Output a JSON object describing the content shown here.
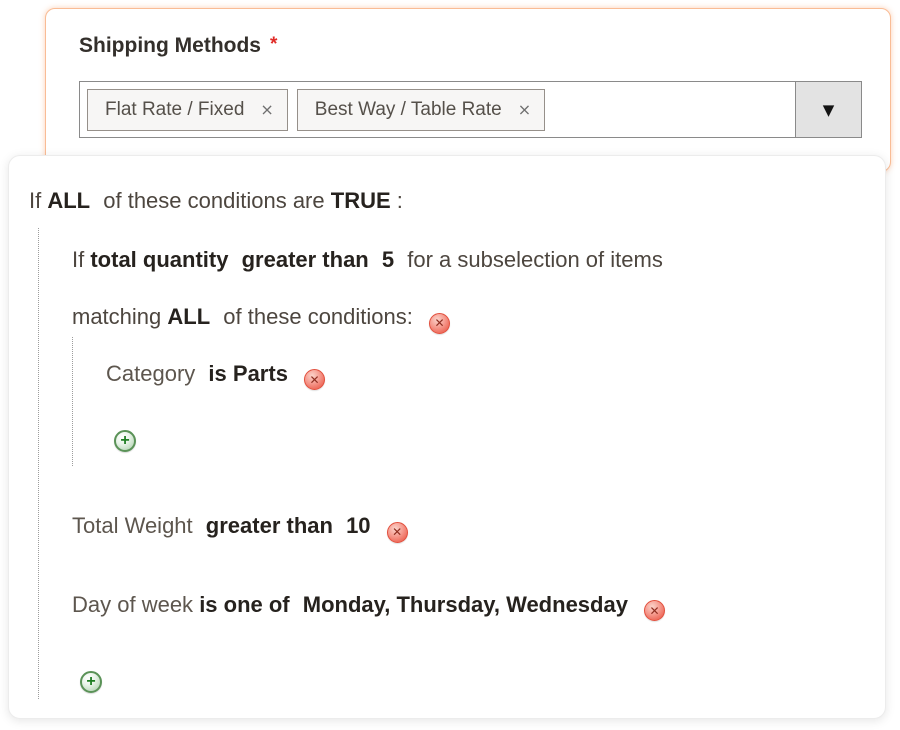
{
  "shipping_field": {
    "label": "Shipping Methods",
    "required": "*",
    "selected": [
      {
        "label": "Flat Rate / Fixed"
      },
      {
        "label": "Best Way / Table Rate"
      }
    ],
    "tag_remove_glyph": "×",
    "dropdown_glyph": "▼"
  },
  "conditions": {
    "header": {
      "if": "If",
      "aggregator": "ALL",
      "middle": "of these conditions are",
      "value": "TRUE",
      "colon": ":"
    },
    "subselection": {
      "if": "If",
      "attribute": "total quantity",
      "operator": "greater than",
      "value": "5",
      "tail": "for a subselection of items",
      "matching": "matching",
      "aggregator": "ALL",
      "matching_tail": "of these conditions:"
    },
    "children": [
      {
        "attribute": "Category",
        "operator": "is",
        "value": "Parts"
      }
    ],
    "siblings": [
      {
        "attribute": "Total Weight",
        "operator": "greater than",
        "value": "10"
      },
      {
        "attribute": "Day of week",
        "operator": "is one of",
        "value": "Monday, Thursday, Wednesday"
      }
    ]
  },
  "icons": {
    "remove": "✕",
    "add": "+"
  },
  "colors": {
    "card_border": "#f9bc95",
    "required_red": "#e02b27",
    "remove_red": "#e85c4a",
    "add_green": "#1e7d22",
    "text_dark": "#26221e",
    "text_normal": "#4d463f"
  }
}
